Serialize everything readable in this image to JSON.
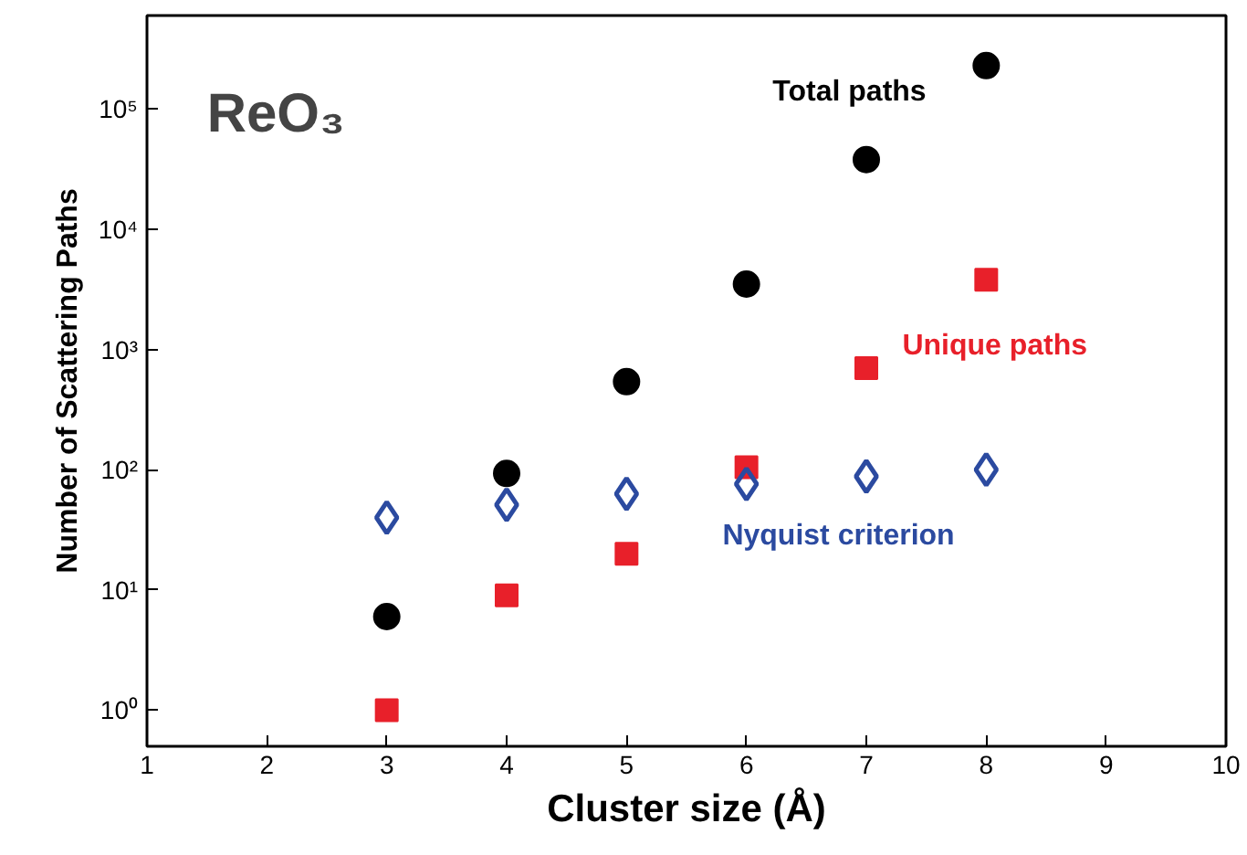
{
  "chart_data": {
    "type": "scatter",
    "xlabel": "Cluster size (Å)",
    "ylabel": "Number of Scattering Paths",
    "annotations": [
      "ReO₃"
    ],
    "log": "y",
    "grid": false,
    "x": [
      3,
      4,
      5,
      6,
      7,
      8
    ],
    "xlim": [
      1,
      10
    ],
    "xticks": [
      1,
      2,
      3,
      4,
      5,
      6,
      7,
      8,
      9,
      10
    ],
    "ylim": [
      0.5,
      600000
    ],
    "yticks": [
      {
        "value": 1,
        "label": "10⁰"
      },
      {
        "value": 10,
        "label": "10¹"
      },
      {
        "value": 100,
        "label": "10²"
      },
      {
        "value": 1000,
        "label": "10³"
      },
      {
        "value": 10000,
        "label": "10⁴"
      },
      {
        "value": 100000,
        "label": "10⁵"
      }
    ],
    "series": [
      {
        "name": "Total paths",
        "color": "#000000",
        "marker": "circle",
        "values": [
          6,
          93,
          540,
          3500,
          38000,
          230000
        ]
      },
      {
        "name": "Unique paths",
        "color": "#e8202a",
        "marker": "square",
        "values": [
          1,
          9,
          20,
          105,
          700,
          3800
        ]
      },
      {
        "name": "Nyquist criterion",
        "color": "#2b4aa0",
        "marker": "diamond",
        "values": [
          40,
          51,
          63,
          76,
          88,
          100
        ]
      }
    ]
  }
}
